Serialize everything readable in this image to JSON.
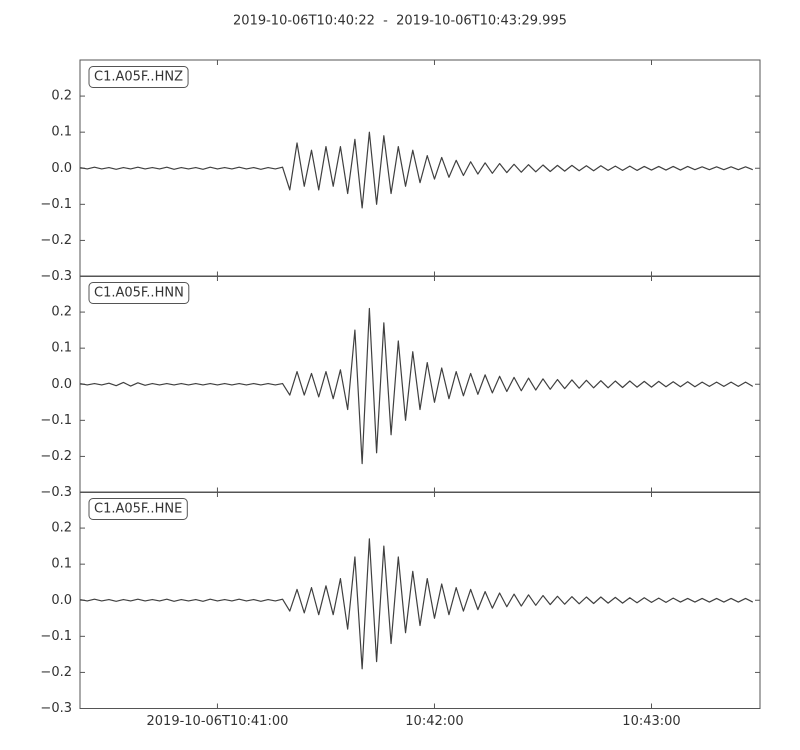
{
  "chart_data": {
    "type": "line",
    "title": "2019-10-06T10:40:22  -  2019-10-06T10:43:29.995",
    "subplots": true,
    "x": [
      0,
      2,
      4,
      6,
      8,
      10,
      12,
      14,
      16,
      18,
      20,
      22,
      24,
      26,
      28,
      30,
      32,
      34,
      36,
      38,
      40,
      42,
      44,
      46,
      48,
      50,
      52,
      54,
      56,
      58,
      60,
      62,
      64,
      66,
      68,
      70,
      72,
      74,
      76,
      78,
      80,
      82,
      84,
      86,
      88,
      90,
      92,
      94,
      96,
      98,
      100,
      102,
      104,
      106,
      108,
      110,
      112,
      114,
      116,
      118,
      120,
      122,
      124,
      126,
      128,
      130,
      132,
      134,
      136,
      138,
      140,
      142,
      144,
      146,
      148,
      150,
      152,
      154,
      156,
      158,
      160,
      162,
      164,
      166,
      168,
      170,
      172,
      174,
      176,
      178,
      180,
      182,
      184,
      186
    ],
    "xlim": [
      0,
      187.995
    ],
    "xticks": [
      {
        "value": 38,
        "label": "2019-10-06T10:41:00"
      },
      {
        "value": 98,
        "label": "10:42:00"
      },
      {
        "value": 158,
        "label": "10:43:00"
      }
    ],
    "ylim": [
      -0.3,
      0.3
    ],
    "yticks": [
      {
        "value": -0.3,
        "label": "−0.3"
      },
      {
        "value": -0.2,
        "label": "−0.2"
      },
      {
        "value": -0.1,
        "label": "−0.1"
      },
      {
        "value": 0,
        "label": "0.0"
      },
      0.1,
      0.2
    ],
    "series": [
      {
        "name": "C1.A05F..HNZ",
        "color": "#404040",
        "values": [
          0.002,
          -0.002,
          0.003,
          -0.002,
          0.002,
          -0.003,
          0.002,
          -0.002,
          0.003,
          -0.002,
          0.002,
          -0.002,
          0.003,
          -0.003,
          0.002,
          -0.002,
          0.002,
          -0.003,
          0.003,
          -0.002,
          0.002,
          -0.002,
          0.003,
          -0.002,
          0.002,
          -0.003,
          0.002,
          -0.002,
          0.003,
          -0.06,
          0.07,
          -0.05,
          0.05,
          -0.06,
          0.06,
          -0.05,
          0.06,
          -0.07,
          0.08,
          -0.11,
          0.1,
          -0.1,
          0.09,
          -0.07,
          0.06,
          -0.05,
          0.05,
          -0.04,
          0.035,
          -0.03,
          0.03,
          -0.025,
          0.022,
          -0.02,
          0.018,
          -0.016,
          0.015,
          -0.014,
          0.013,
          -0.012,
          0.011,
          -0.011,
          0.01,
          -0.01,
          0.009,
          -0.009,
          0.008,
          -0.008,
          0.008,
          -0.007,
          0.007,
          -0.007,
          0.007,
          -0.006,
          0.006,
          -0.006,
          0.006,
          -0.006,
          0.005,
          -0.005,
          0.005,
          -0.005,
          0.005,
          -0.005,
          0.005,
          -0.004,
          0.004,
          -0.004,
          0.004,
          -0.004,
          0.004,
          -0.004,
          0.004,
          -0.004
        ]
      },
      {
        "name": "C1.A05F..HNN",
        "color": "#404040",
        "values": [
          0.002,
          -0.002,
          0.002,
          -0.002,
          0.003,
          -0.004,
          0.005,
          -0.005,
          0.004,
          -0.003,
          0.002,
          -0.002,
          0.002,
          -0.002,
          0.002,
          -0.002,
          0.002,
          -0.002,
          0.002,
          -0.002,
          0.002,
          -0.002,
          0.002,
          -0.002,
          0.002,
          -0.002,
          0.002,
          -0.002,
          0.002,
          -0.03,
          0.035,
          -0.03,
          0.03,
          -0.035,
          0.035,
          -0.04,
          0.04,
          -0.07,
          0.15,
          -0.22,
          0.21,
          -0.19,
          0.17,
          -0.14,
          0.12,
          -0.1,
          0.09,
          -0.07,
          0.06,
          -0.05,
          0.045,
          -0.04,
          0.035,
          -0.032,
          0.03,
          -0.028,
          0.026,
          -0.024,
          0.022,
          -0.02,
          0.019,
          -0.018,
          0.017,
          -0.016,
          0.015,
          -0.014,
          0.013,
          -0.012,
          0.012,
          -0.011,
          0.011,
          -0.01,
          0.01,
          -0.01,
          0.009,
          -0.009,
          0.009,
          -0.008,
          0.008,
          -0.008,
          0.008,
          -0.007,
          0.007,
          -0.007,
          0.007,
          -0.007,
          0.006,
          -0.006,
          0.006,
          -0.006,
          0.006,
          -0.006,
          0.006,
          -0.006
        ]
      },
      {
        "name": "C1.A05F..HNE",
        "color": "#404040",
        "values": [
          0.002,
          -0.002,
          0.003,
          -0.002,
          0.002,
          -0.003,
          0.002,
          -0.002,
          0.003,
          -0.002,
          0.002,
          -0.002,
          0.003,
          -0.003,
          0.002,
          -0.002,
          0.002,
          -0.003,
          0.003,
          -0.002,
          0.002,
          -0.002,
          0.003,
          -0.002,
          0.002,
          -0.003,
          0.002,
          -0.002,
          0.003,
          -0.03,
          0.03,
          -0.035,
          0.035,
          -0.04,
          0.04,
          -0.04,
          0.06,
          -0.08,
          0.12,
          -0.19,
          0.17,
          -0.17,
          0.15,
          -0.12,
          0.12,
          -0.09,
          0.08,
          -0.07,
          0.06,
          -0.05,
          0.045,
          -0.04,
          0.035,
          -0.03,
          0.03,
          -0.026,
          0.024,
          -0.022,
          0.02,
          -0.018,
          0.017,
          -0.016,
          0.015,
          -0.014,
          0.013,
          -0.012,
          0.011,
          -0.011,
          0.01,
          -0.01,
          0.009,
          -0.009,
          0.009,
          -0.008,
          0.008,
          -0.008,
          0.007,
          -0.007,
          0.007,
          -0.006,
          0.006,
          -0.006,
          0.006,
          -0.005,
          0.005,
          -0.005,
          0.005,
          -0.005,
          0.005,
          -0.005,
          0.005,
          -0.005,
          0.005,
          -0.005
        ]
      }
    ]
  }
}
